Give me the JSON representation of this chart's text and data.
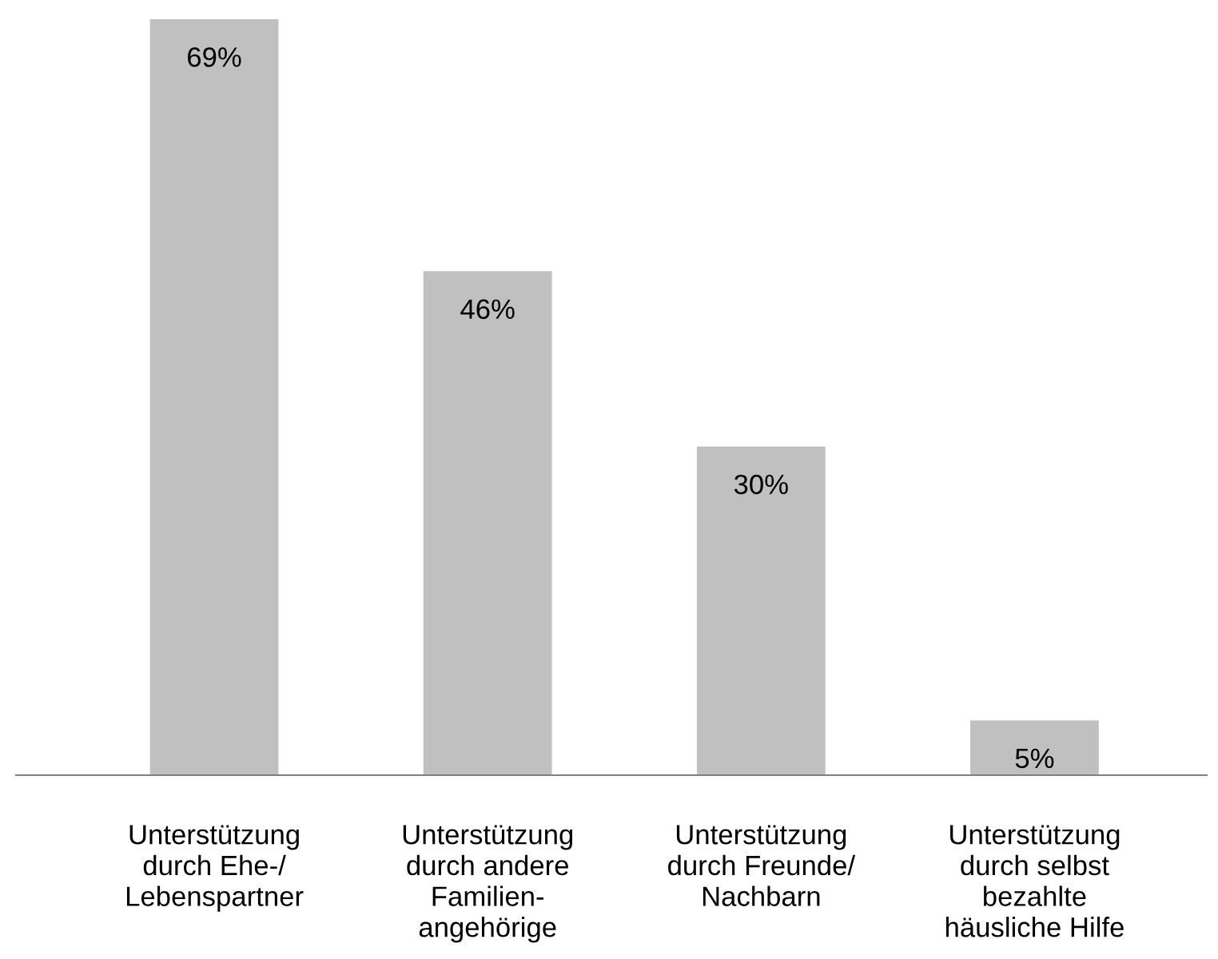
{
  "chart_data": {
    "type": "bar",
    "categories": [
      "Unterstützung\ndurch Ehe-/\nLebenspartner",
      "Unterstützung\ndurch andere\nFamilien-\nangehörige",
      "Unterstützung\ndurch Freunde/\nNachbarn",
      "Unterstützung\ndurch selbst\nbezahlte\nhäusliche Hilfe"
    ],
    "values": [
      69,
      46,
      30,
      5
    ],
    "value_labels": [
      "69%",
      "46%",
      "30%",
      "5%"
    ],
    "color": "#c0c0c0",
    "ylim": [
      0,
      69
    ],
    "tick_labels": "x",
    "grid": false,
    "legend": false
  }
}
